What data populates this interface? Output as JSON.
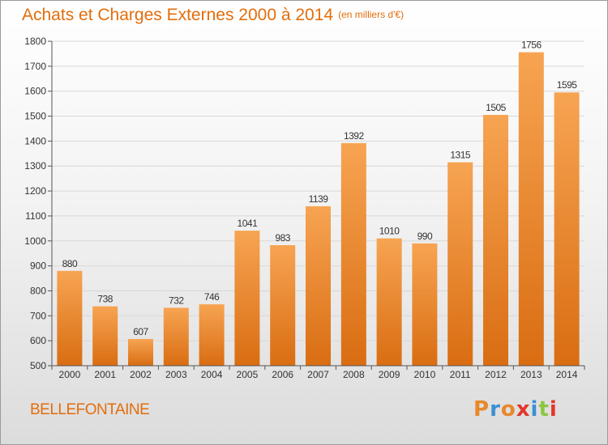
{
  "header": {
    "title": "Achats et Charges Externes 2000 à 2014",
    "subtitle": "(en milliers d'€)"
  },
  "footer": {
    "commune": "BELLEFONTAINE",
    "brand": "Proxiti",
    "brand_colors": [
      "#e8882a",
      "#3c8fd2",
      "#e8882a",
      "#e2372a",
      "#3c8fd2",
      "#8cc63f",
      "#e2372a"
    ]
  },
  "colors": {
    "title": "#e36d0b",
    "bar_top": "#f7a452",
    "bar_bottom": "#d96d12",
    "grid": "#d8d8d8",
    "axis": "#555555"
  },
  "chart_data": {
    "type": "bar",
    "categories": [
      "2000",
      "2001",
      "2002",
      "2003",
      "2004",
      "2005",
      "2006",
      "2007",
      "2008",
      "2009",
      "2010",
      "2011",
      "2012",
      "2013",
      "2014"
    ],
    "values": [
      880,
      738,
      607,
      732,
      746,
      1041,
      983,
      1139,
      1392,
      1010,
      990,
      1315,
      1505,
      1756,
      1595
    ],
    "data_labels": [
      "880",
      "738",
      "607",
      "732",
      "746",
      "1041",
      "983",
      "1139",
      "1392",
      "1010",
      "990",
      "1315",
      "1505",
      "1756",
      "1595"
    ],
    "ylim": [
      500,
      1800
    ],
    "yticks": [
      500,
      600,
      700,
      800,
      900,
      1000,
      1100,
      1200,
      1300,
      1400,
      1500,
      1600,
      1700,
      1800
    ],
    "grid": true,
    "legend": "none",
    "xlabel": "",
    "ylabel": ""
  }
}
